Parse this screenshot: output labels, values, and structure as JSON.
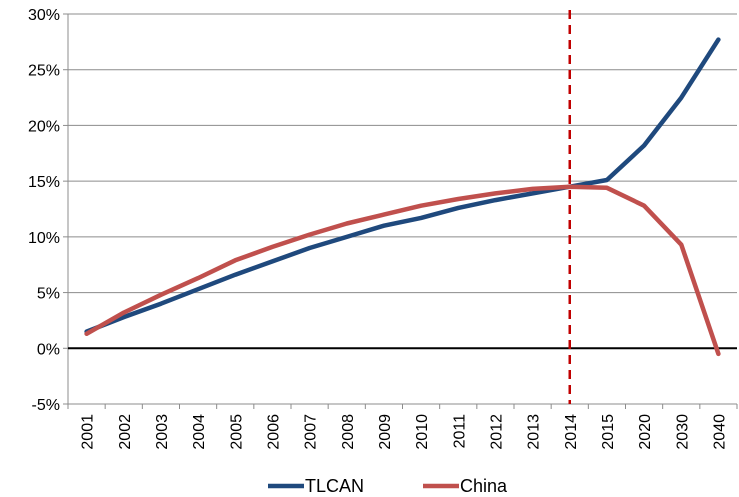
{
  "chart_data": {
    "type": "line",
    "title": "",
    "xlabel": "",
    "ylabel": "",
    "categories": [
      "2001",
      "2002",
      "2003",
      "2004",
      "2005",
      "2006",
      "2007",
      "2008",
      "2009",
      "2010",
      "2011",
      "2012",
      "2013",
      "2014",
      "2015",
      "2020",
      "2030",
      "2040"
    ],
    "ylim": [
      -5,
      30
    ],
    "yticks": [
      -5,
      0,
      5,
      10,
      15,
      20,
      25,
      30
    ],
    "ytick_labels": [
      "-5%",
      "0%",
      "5%",
      "10%",
      "15%",
      "20%",
      "25%",
      "30%"
    ],
    "grid": true,
    "legend_position": "bottom",
    "reference_line": {
      "category": "2014",
      "style": "dashed",
      "color": "#c00000"
    },
    "series": [
      {
        "name": "TLCAN",
        "color": "#1f497d",
        "values": [
          1.5,
          2.8,
          4.0,
          5.3,
          6.6,
          7.8,
          9.0,
          10.0,
          11.0,
          11.7,
          12.6,
          13.3,
          13.9,
          14.5,
          15.1,
          18.2,
          22.5,
          27.7
        ]
      },
      {
        "name": "China",
        "color": "#c0504d",
        "values": [
          1.3,
          3.2,
          4.8,
          6.3,
          7.9,
          9.1,
          10.2,
          11.2,
          12.0,
          12.8,
          13.4,
          13.9,
          14.3,
          14.5,
          14.4,
          12.8,
          9.3,
          -0.5
        ]
      }
    ]
  }
}
